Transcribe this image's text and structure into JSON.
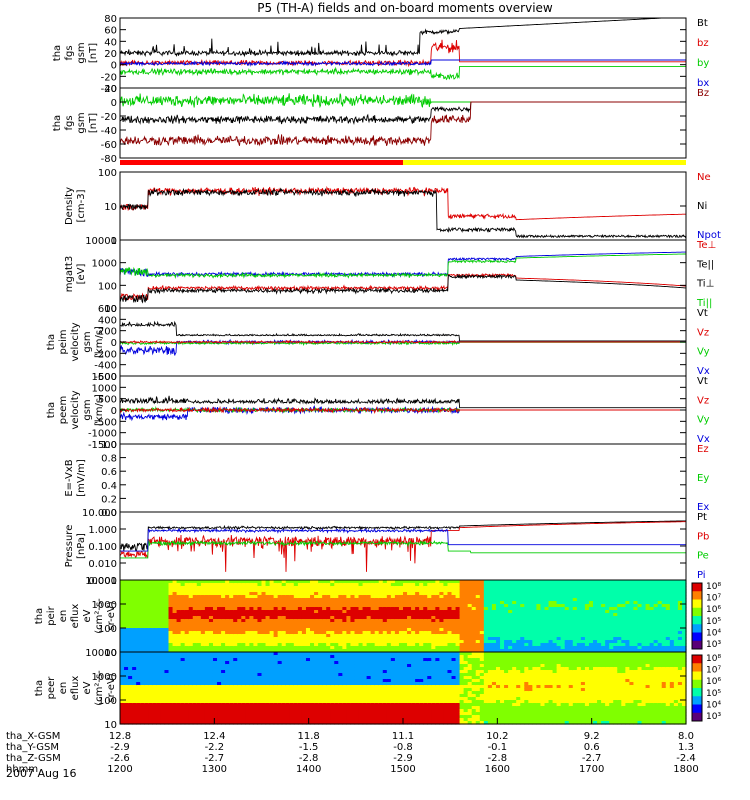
{
  "chart_data": {
    "type": "line",
    "title": "P5 (TH-A) fields and on-board moments overview",
    "date_label": "2007 Aug 16",
    "x_axis": {
      "rows": [
        {
          "label": "tha_X-GSM",
          "values": [
            "12.8",
            "12.4",
            "11.8",
            "11.1",
            "10.2",
            "9.2",
            "8.0"
          ]
        },
        {
          "label": "tha_Y-GSM",
          "values": [
            "-2.9",
            "-2.2",
            "-1.5",
            "-0.8",
            "-0.1",
            "0.6",
            "1.3"
          ]
        },
        {
          "label": "tha_Z-GSM",
          "values": [
            "-2.6",
            "-2.7",
            "-2.8",
            "-2.9",
            "-2.8",
            "-2.7",
            "-2.4"
          ]
        },
        {
          "label": "hhmm",
          "values": [
            "1200",
            "1300",
            "1400",
            "1500",
            "1600",
            "1700",
            "1800"
          ]
        }
      ]
    },
    "panels": [
      {
        "ylabel": [
          "tha",
          "fgs",
          "gsm",
          "[nT]"
        ],
        "ylim": [
          -40,
          80
        ],
        "ticks": [
          "80",
          "60",
          "40",
          "20",
          "0",
          "-20",
          "-40"
        ],
        "legend": [
          {
            "name": "Bt",
            "color": "#000000"
          },
          {
            "name": "bz",
            "color": "#dd0000"
          },
          {
            "name": "by",
            "color": "#00cc00"
          },
          {
            "name": "bx",
            "color": "#0000dd"
          }
        ]
      },
      {
        "ylabel": [
          "tha",
          "fgs",
          "gsm",
          "[nT]"
        ],
        "ylim": [
          -80,
          20
        ],
        "ticks": [
          "20",
          "0",
          "-20",
          "-40",
          "-60",
          "-80"
        ],
        "legend": [
          {
            "name": "Bz",
            "color": "#8b0000"
          }
        ]
      },
      {
        "ylabel": [
          "Density",
          "[cm-3]"
        ],
        "ylim": [
          0.4,
          120
        ],
        "ticks": [
          "100",
          "10",
          "1"
        ],
        "legend": [
          {
            "name": "Ne",
            "color": "#dd0000"
          },
          {
            "name": "Ni",
            "color": "#000000"
          },
          {
            "name": "Npot",
            "color": "#0000dd"
          }
        ]
      },
      {
        "ylabel": [
          "mgatt3",
          "[eV]"
        ],
        "ylim": [
          8,
          20000
        ],
        "ticks": [
          "10000",
          "1000",
          "100",
          "10"
        ],
        "legend": [
          {
            "name": "Te⊥",
            "color": "#dd0000"
          },
          {
            "name": "Te||",
            "color": "#000000"
          },
          {
            "name": "Ti⊥",
            "color": "#000000"
          },
          {
            "name": "Ti||",
            "color": "#00cc00"
          }
        ]
      },
      {
        "ylabel": [
          "tha",
          "peim",
          "velocity",
          "gsm",
          "[km/s]"
        ],
        "ylim": [
          -600,
          600
        ],
        "ticks": [
          "600",
          "400",
          "200",
          "0",
          "-200",
          "-400",
          "-600"
        ],
        "legend": [
          {
            "name": "Vt",
            "color": "#000000"
          },
          {
            "name": "Vz",
            "color": "#dd0000"
          },
          {
            "name": "Vy",
            "color": "#00cc00"
          },
          {
            "name": "Vx",
            "color": "#0000dd"
          }
        ]
      },
      {
        "ylabel": [
          "tha",
          "peem",
          "velocity",
          "gsm",
          "[km/s]"
        ],
        "ylim": [
          -1500,
          1500
        ],
        "ticks": [
          "1500",
          "1000",
          "500",
          "0",
          "-500",
          "-1000",
          "-1500"
        ],
        "legend": [
          {
            "name": "Vt",
            "color": "#000000"
          },
          {
            "name": "Vz",
            "color": "#dd0000"
          },
          {
            "name": "Vy",
            "color": "#00cc00"
          },
          {
            "name": "Vx",
            "color": "#0000dd"
          }
        ]
      },
      {
        "ylabel": [
          "E=-VxB",
          "[mV/m]"
        ],
        "ylim": [
          0,
          1
        ],
        "ticks": [
          "1.0",
          "0.8",
          "0.6",
          "0.4",
          "0.2",
          "0.0"
        ],
        "legend": [
          {
            "name": "Ez",
            "color": "#dd0000"
          },
          {
            "name": "Ey",
            "color": "#00cc00"
          },
          {
            "name": "Ex",
            "color": "#0000dd"
          }
        ]
      },
      {
        "ylabel": [
          "Pressure",
          "[nPa]"
        ],
        "ylim": [
          0.001,
          10
        ],
        "ticks": [
          "10.000",
          "1.000",
          "0.100",
          "0.010",
          "0.001"
        ],
        "legend": [
          {
            "name": "Pt",
            "color": "#000000"
          },
          {
            "name": "Pb",
            "color": "#dd0000"
          },
          {
            "name": "Pe",
            "color": "#00cc00"
          },
          {
            "name": "Pi",
            "color": "#0000dd"
          }
        ]
      },
      {
        "ylabel": [
          "tha",
          "peir",
          "en",
          "eflux",
          "eV",
          "(cm²-s-",
          "sr-eV)"
        ],
        "ylim": [
          5,
          20000
        ],
        "ticks": [
          "10000",
          "1000",
          "100",
          "10"
        ],
        "colorbar": [
          "10⁸",
          "10⁷",
          "10⁶",
          "10⁵",
          "10⁴",
          "10³"
        ]
      },
      {
        "ylabel": [
          "tha",
          "peer",
          "en",
          "eflux",
          "eV",
          "(cm²-s-",
          "sr-eV)"
        ],
        "ylim": [
          5,
          20000
        ],
        "ticks": [
          "10000",
          "1000",
          "100",
          "10"
        ],
        "colorbar": [
          "10⁸",
          "10⁷",
          "10⁶",
          "10⁵",
          "10⁴",
          "10³"
        ]
      }
    ]
  }
}
